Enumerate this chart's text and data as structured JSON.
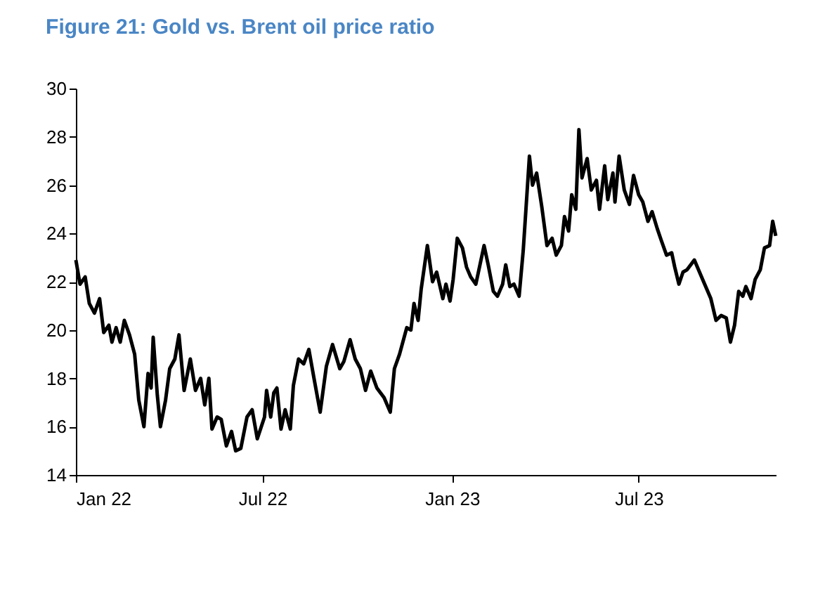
{
  "chart_data": {
    "type": "line",
    "title": "Figure 21: Gold vs. Brent oil price ratio",
    "x": [
      "2022-01-01",
      "2022-01-05",
      "2022-01-10",
      "2022-01-14",
      "2022-01-19",
      "2022-01-24",
      "2022-01-28",
      "2022-02-02",
      "2022-02-05",
      "2022-02-09",
      "2022-02-13",
      "2022-02-17",
      "2022-02-22",
      "2022-02-27",
      "2022-03-03",
      "2022-03-08",
      "2022-03-12",
      "2022-03-15",
      "2022-03-17",
      "2022-03-21",
      "2022-03-24",
      "2022-03-29",
      "2022-04-02",
      "2022-04-07",
      "2022-04-11",
      "2022-04-16",
      "2022-04-22",
      "2022-04-27",
      "2022-05-02",
      "2022-05-06",
      "2022-05-10",
      "2022-05-13",
      "2022-05-18",
      "2022-05-22",
      "2022-05-27",
      "2022-06-01",
      "2022-06-05",
      "2022-06-10",
      "2022-06-16",
      "2022-06-21",
      "2022-06-26",
      "2022-07-03",
      "2022-07-05",
      "2022-07-09",
      "2022-07-12",
      "2022-07-15",
      "2022-07-19",
      "2022-07-23",
      "2022-07-28",
      "2022-07-31",
      "2022-08-05",
      "2022-08-10",
      "2022-08-15",
      "2022-08-20",
      "2022-08-26",
      "2022-09-01",
      "2022-09-07",
      "2022-09-14",
      "2022-09-18",
      "2022-09-24",
      "2022-09-29",
      "2022-10-04",
      "2022-10-09",
      "2022-10-14",
      "2022-10-20",
      "2022-10-27",
      "2022-11-02",
      "2022-11-06",
      "2022-11-11",
      "2022-11-18",
      "2022-11-22",
      "2022-11-25",
      "2022-11-29",
      "2022-12-02",
      "2022-12-08",
      "2022-12-13",
      "2022-12-17",
      "2022-12-23",
      "2022-12-26",
      "2022-12-30",
      "2023-01-02",
      "2023-01-06",
      "2023-01-11",
      "2023-01-15",
      "2023-01-19",
      "2023-01-24",
      "2023-01-28",
      "2023-02-01",
      "2023-02-05",
      "2023-02-10",
      "2023-02-14",
      "2023-02-19",
      "2023-02-22",
      "2023-02-26",
      "2023-03-02",
      "2023-03-07",
      "2023-03-11",
      "2023-03-17",
      "2023-03-20",
      "2023-03-24",
      "2023-03-29",
      "2023-04-03",
      "2023-04-08",
      "2023-04-12",
      "2023-04-17",
      "2023-04-20",
      "2023-04-24",
      "2023-04-27",
      "2023-05-01",
      "2023-05-04",
      "2023-05-07",
      "2023-05-12",
      "2023-05-16",
      "2023-05-21",
      "2023-05-24",
      "2023-05-29",
      "2023-06-01",
      "2023-06-06",
      "2023-06-08",
      "2023-06-12",
      "2023-06-17",
      "2023-06-22",
      "2023-06-26",
      "2023-07-01",
      "2023-07-05",
      "2023-07-10",
      "2023-07-14",
      "2023-07-19",
      "2023-07-23",
      "2023-07-28",
      "2023-08-02",
      "2023-08-05",
      "2023-08-09",
      "2023-08-13",
      "2023-08-17",
      "2023-08-24",
      "2023-08-30",
      "2023-09-03",
      "2023-09-09",
      "2023-09-14",
      "2023-09-19",
      "2023-09-24",
      "2023-09-28",
      "2023-10-02",
      "2023-10-06",
      "2023-10-10",
      "2023-10-13",
      "2023-10-18",
      "2023-10-22",
      "2023-10-27",
      "2023-10-31",
      "2023-11-05",
      "2023-11-08",
      "2023-11-11"
    ],
    "series": [
      {
        "color": "#000000",
        "values": [
          22.9,
          21.9,
          22.2,
          21.1,
          20.7,
          21.3,
          19.9,
          20.2,
          19.5,
          20.1,
          19.5,
          20.4,
          19.8,
          19.0,
          17.1,
          16.0,
          18.2,
          17.6,
          19.7,
          17.3,
          16.0,
          17.1,
          18.4,
          18.8,
          19.8,
          17.5,
          18.8,
          17.5,
          18.0,
          16.9,
          18.0,
          15.9,
          16.4,
          16.3,
          15.2,
          15.8,
          15.0,
          15.1,
          16.4,
          16.7,
          15.5,
          16.4,
          17.5,
          16.4,
          17.4,
          17.6,
          15.9,
          16.7,
          15.9,
          17.7,
          18.8,
          18.6,
          19.2,
          18.0,
          16.6,
          18.5,
          19.4,
          18.4,
          18.7,
          19.6,
          18.8,
          18.4,
          17.5,
          18.3,
          17.6,
          17.2,
          16.6,
          18.4,
          19.0,
          20.1,
          20.0,
          21.1,
          20.4,
          21.7,
          23.5,
          22.0,
          22.4,
          21.3,
          21.9,
          21.2,
          22.1,
          23.8,
          23.4,
          22.6,
          22.2,
          21.9,
          22.7,
          23.5,
          22.7,
          21.6,
          21.4,
          21.9,
          22.7,
          21.8,
          21.9,
          21.4,
          23.3,
          27.2,
          26.0,
          26.5,
          25.1,
          23.5,
          23.8,
          23.1,
          23.5,
          24.7,
          24.1,
          25.6,
          25.0,
          28.3,
          26.3,
          27.1,
          25.8,
          26.2,
          25.0,
          26.8,
          25.4,
          26.5,
          25.3,
          27.2,
          25.8,
          25.2,
          26.4,
          25.6,
          25.3,
          24.5,
          24.9,
          24.2,
          23.7,
          23.1,
          23.2,
          22.6,
          21.9,
          22.4,
          22.5,
          22.9,
          22.3,
          21.9,
          21.3,
          20.4,
          20.6,
          20.5,
          19.5,
          20.2,
          21.6,
          21.4,
          21.8,
          21.3,
          22.1,
          22.5,
          23.4,
          23.5,
          24.5,
          23.9
        ]
      }
    ],
    "xlim": [
      "2022-01-01",
      "2023-11-11"
    ],
    "xticks": [
      {
        "value": "2022-01-01",
        "label": "Jan 22"
      },
      {
        "value": "2022-07-01",
        "label": "Jul 22"
      },
      {
        "value": "2023-01-01",
        "label": "Jan 23"
      },
      {
        "value": "2023-07-01",
        "label": "Jul 23"
      }
    ],
    "ylim": [
      14,
      30
    ],
    "yticks": [
      14,
      16,
      18,
      20,
      22,
      24,
      26,
      28,
      30
    ],
    "grid": false,
    "marker": "none",
    "line_style": "solid"
  }
}
